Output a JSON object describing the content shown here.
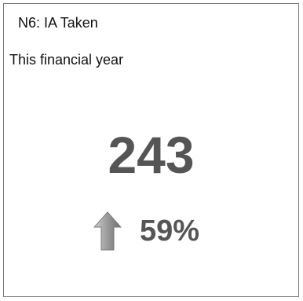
{
  "widget": {
    "title": "N6: IA Taken",
    "subtitle": "This financial year",
    "value": "243",
    "trend": {
      "direction": "up",
      "icon": "up-arrow-icon",
      "percent": "59%",
      "arrow_color": "#999999"
    }
  }
}
